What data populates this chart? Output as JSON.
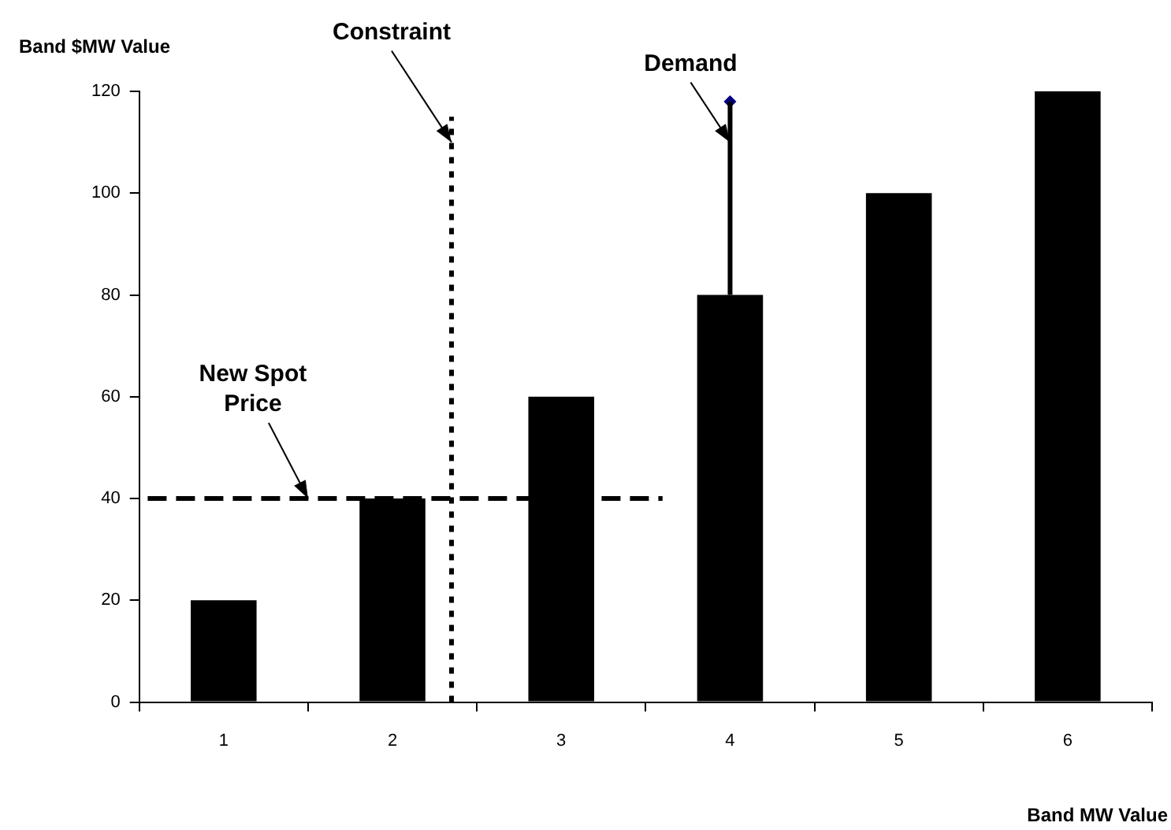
{
  "chart_data": {
    "type": "bar",
    "xlabel": "Band MW Value",
    "ylabel": "Band $MW Value",
    "x": [
      1,
      2,
      3,
      4,
      5,
      6
    ],
    "series": [
      {
        "color": "#000000",
        "values": [
          20,
          40,
          60,
          80,
          100,
          120
        ],
        "errors": [
          null,
          null,
          null,
          [
            80,
            118
          ],
          null,
          null
        ]
      },
      {
        "type": "line",
        "x": [
          0.55,
          3.6
        ],
        "values": [
          40,
          40
        ],
        "color": "#000000",
        "line_style": "dashed"
      },
      {
        "type": "line",
        "x": [
          2.35,
          2.35
        ],
        "values": [
          0,
          115
        ],
        "color": "#000000",
        "line_style": "dotted"
      },
      {
        "type": "scatter",
        "x": [
          4
        ],
        "values": [
          118
        ],
        "color": "#000080",
        "marker": "diamond"
      }
    ],
    "annotations": [
      {
        "text": "Constraint",
        "x": 2.35,
        "y": 110
      },
      {
        "text": "Demand",
        "x": 4,
        "y": 110
      },
      {
        "text": "New Spot Price",
        "x": 1.5,
        "y": 40
      }
    ],
    "xlim": [
      0.5,
      6.5
    ],
    "xticks": [
      {
        "value": 1,
        "label": "1"
      },
      {
        "value": 2,
        "label": "2"
      },
      {
        "value": 3,
        "label": "3"
      },
      {
        "value": 4,
        "label": "4"
      },
      {
        "value": 5,
        "label": "5"
      },
      {
        "value": 6,
        "label": "6"
      },
      {
        "value": 0.5,
        "label": null
      },
      {
        "value": 1.5,
        "label": null
      },
      {
        "value": 2.5,
        "label": null
      },
      {
        "value": 3.5,
        "label": null
      },
      {
        "value": 4.5,
        "label": null
      },
      {
        "value": 5.5,
        "label": null
      },
      {
        "value": 6.5,
        "label": null
      }
    ],
    "ylim": [
      0,
      120
    ],
    "yticks": [
      0,
      20,
      40,
      60,
      80,
      100,
      120
    ],
    "grid": false,
    "legend": false
  }
}
